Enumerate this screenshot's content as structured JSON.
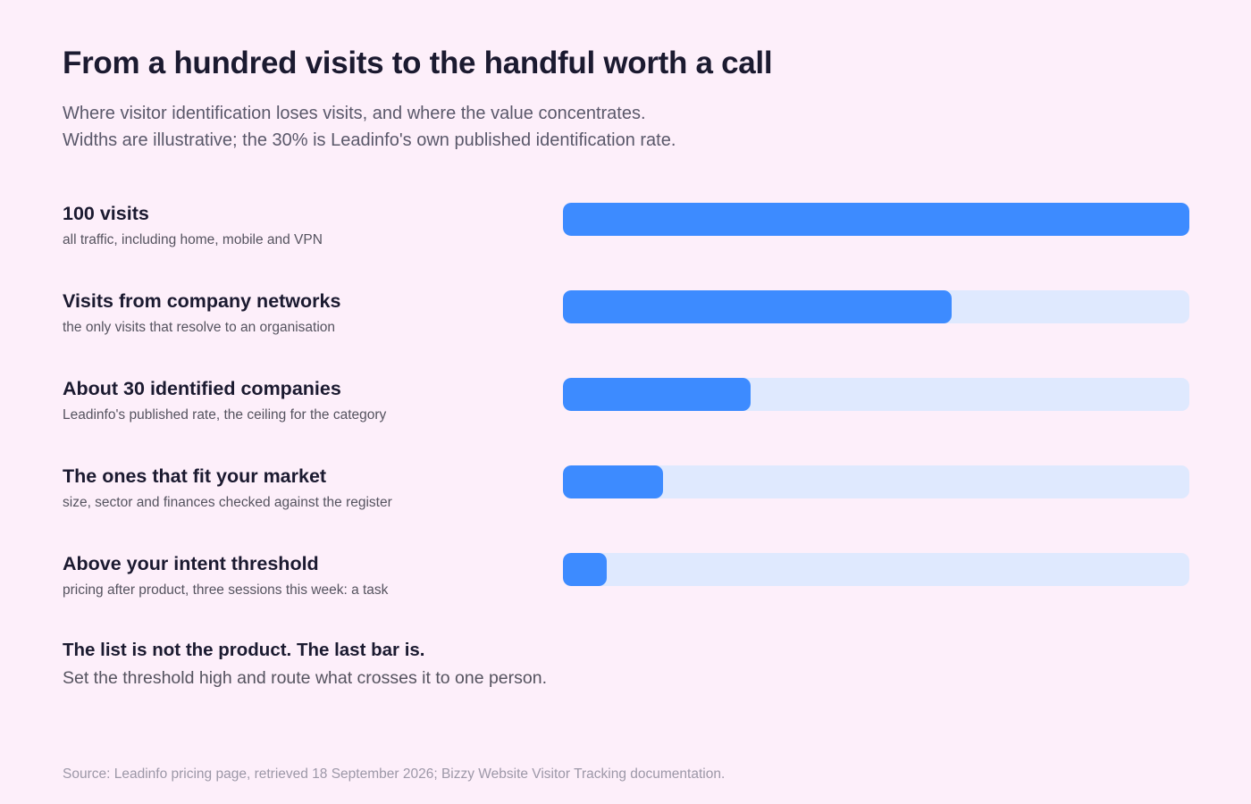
{
  "title": "From a hundred visits to the handful worth a call",
  "subtitle": {
    "line1": "Where visitor identification loses visits, and where the value concentrates.",
    "line2": "Widths are illustrative; the 30% is Leadinfo's own published identification rate."
  },
  "colors": {
    "background": "#fdeffa",
    "bar_fill": "#3d8bff",
    "bar_track": "#dfe9fe",
    "text_primary": "#1b1a30",
    "text_secondary": "#55535f",
    "text_muted": "#9d98a8"
  },
  "chart_data": {
    "type": "bar",
    "orientation": "horizontal",
    "scale_max": 100,
    "categories": [
      "100 visits",
      "Visits from company networks",
      "About 30 identified companies",
      "The ones that fit your market",
      "Above your intent threshold"
    ],
    "descriptions": [
      "all traffic, including home, mobile and VPN",
      "the only visits that resolve to an organisation",
      "Leadinfo's published rate, the ceiling for the category",
      "size, sector and finances checked against the register",
      "pricing after product, three sessions this week: a task"
    ],
    "values": [
      100,
      62,
      30,
      16,
      7
    ]
  },
  "takeaway": {
    "headline": "The list is not the product. The last bar is.",
    "detail": "Set the threshold high and route what crosses it to one person."
  },
  "source": "Source: Leadinfo pricing page, retrieved 18 September 2026; Bizzy Website Visitor Tracking documentation."
}
